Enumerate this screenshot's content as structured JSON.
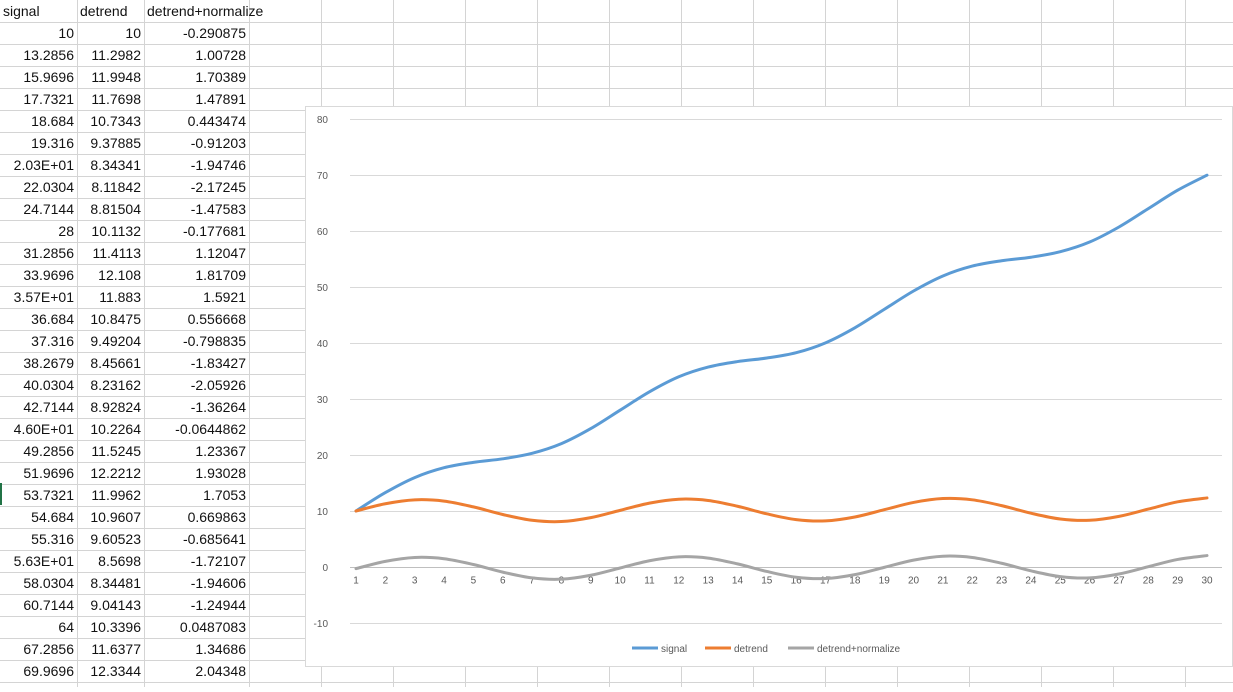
{
  "sheet": {
    "headers": [
      "signal",
      "detrend",
      "detrend+normalize"
    ],
    "rows": [
      [
        "10",
        "10",
        "-0.290875"
      ],
      [
        "13.2856",
        "11.2982",
        "1.00728"
      ],
      [
        "15.9696",
        "11.9948",
        "1.70389"
      ],
      [
        "17.7321",
        "11.7698",
        "1.47891"
      ],
      [
        "18.684",
        "10.7343",
        "0.443474"
      ],
      [
        "19.316",
        "9.37885",
        "-0.91203"
      ],
      [
        "2.03E+01",
        "8.34341",
        "-1.94746"
      ],
      [
        "22.0304",
        "8.11842",
        "-2.17245"
      ],
      [
        "24.7144",
        "8.81504",
        "-1.47583"
      ],
      [
        "28",
        "10.1132",
        "-0.177681"
      ],
      [
        "31.2856",
        "11.4113",
        "1.12047"
      ],
      [
        "33.9696",
        "12.108",
        "1.81709"
      ],
      [
        "3.57E+01",
        "11.883",
        "1.5921"
      ],
      [
        "36.684",
        "10.8475",
        "0.556668"
      ],
      [
        "37.316",
        "9.49204",
        "-0.798835"
      ],
      [
        "38.2679",
        "8.45661",
        "-1.83427"
      ],
      [
        "40.0304",
        "8.23162",
        "-2.05926"
      ],
      [
        "42.7144",
        "8.92824",
        "-1.36264"
      ],
      [
        "4.60E+01",
        "10.2264",
        "-0.0644862"
      ],
      [
        "49.2856",
        "11.5245",
        "1.23367"
      ],
      [
        "51.9696",
        "12.2212",
        "1.93028"
      ],
      [
        "53.7321",
        "11.9962",
        "1.7053"
      ],
      [
        "54.684",
        "10.9607",
        "0.669863"
      ],
      [
        "55.316",
        "9.60523",
        "-0.685641"
      ],
      [
        "5.63E+01",
        "8.5698",
        "-1.72107"
      ],
      [
        "58.0304",
        "8.34481",
        "-1.94606"
      ],
      [
        "60.7144",
        "9.04143",
        "-1.24944"
      ],
      [
        "64",
        "10.3396",
        "0.0487083"
      ],
      [
        "67.2856",
        "11.6377",
        "1.34686"
      ],
      [
        "69.9696",
        "12.3344",
        "2.04348"
      ]
    ]
  },
  "chart_data": {
    "type": "line",
    "title": "",
    "xlabel": "",
    "ylabel": "",
    "ylim": [
      -10,
      80
    ],
    "yticks": [
      "-10",
      "0",
      "10",
      "20",
      "30",
      "40",
      "50",
      "60",
      "70",
      "80"
    ],
    "categories": [
      "1",
      "2",
      "3",
      "4",
      "5",
      "6",
      "7",
      "8",
      "9",
      "10",
      "11",
      "12",
      "13",
      "14",
      "15",
      "16",
      "17",
      "18",
      "19",
      "20",
      "21",
      "22",
      "23",
      "24",
      "25",
      "26",
      "27",
      "28",
      "29",
      "30"
    ],
    "grid": true,
    "legend_position": "bottom",
    "series": [
      {
        "name": "signal",
        "color": "#5b9bd5",
        "values": [
          10,
          13.2856,
          15.9696,
          17.7321,
          18.684,
          19.316,
          20.3,
          22.0304,
          24.7144,
          28,
          31.2856,
          33.9696,
          35.7,
          36.684,
          37.316,
          38.2679,
          40.0304,
          42.7144,
          46.0,
          49.2856,
          51.9696,
          53.7321,
          54.684,
          55.316,
          56.3,
          58.0304,
          60.7144,
          64,
          67.2856,
          69.9696
        ]
      },
      {
        "name": "detrend",
        "color": "#ed7d31",
        "values": [
          10,
          11.2982,
          11.9948,
          11.7698,
          10.7343,
          9.37885,
          8.34341,
          8.11842,
          8.81504,
          10.1132,
          11.4113,
          12.108,
          11.883,
          10.8475,
          9.49204,
          8.45661,
          8.23162,
          8.92824,
          10.2264,
          11.5245,
          12.2212,
          11.9962,
          10.9607,
          9.60523,
          8.5698,
          8.34481,
          9.04143,
          10.3396,
          11.6377,
          12.3344
        ]
      },
      {
        "name": "detrend+normalize",
        "color": "#a5a5a5",
        "values": [
          -0.290875,
          1.00728,
          1.70389,
          1.47891,
          0.443474,
          -0.91203,
          -1.94746,
          -2.17245,
          -1.47583,
          -0.177681,
          1.12047,
          1.81709,
          1.5921,
          0.556668,
          -0.798835,
          -1.83427,
          -2.05926,
          -1.36264,
          -0.0644862,
          1.23367,
          1.93028,
          1.7053,
          0.669863,
          -0.685641,
          -1.72107,
          -1.94606,
          -1.24944,
          0.0487083,
          1.34686,
          2.04348
        ]
      }
    ]
  }
}
